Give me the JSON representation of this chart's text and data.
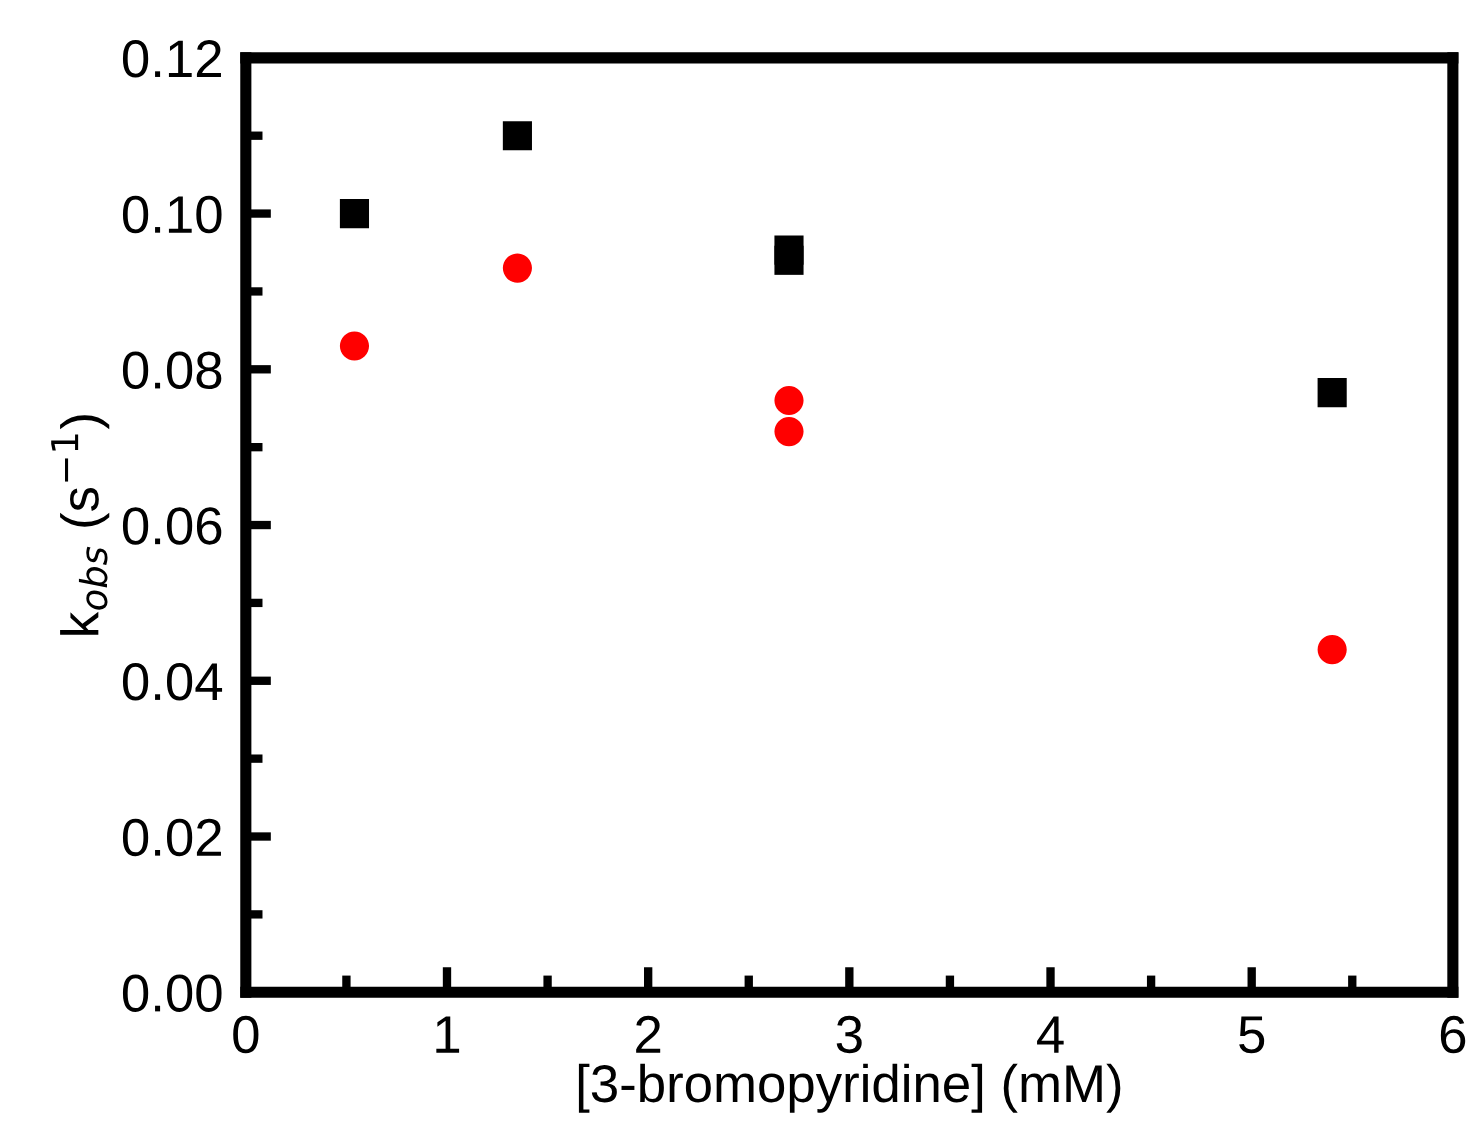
{
  "chart_data": {
    "type": "scatter",
    "xlabel": "[3-bromopyridine] (mM)",
    "ylabel": "k$_{obs}$ (s$^{−1}$)",
    "series": [
      {
        "color": "#000000",
        "marker": "square",
        "x": [
          0.54,
          1.35,
          2.7,
          2.7,
          5.4
        ],
        "values": [
          0.1,
          0.11,
          0.0953,
          0.094,
          0.077
        ]
      },
      {
        "color": "#ff0000",
        "marker": "circle",
        "x": [
          0.54,
          1.35,
          2.7,
          2.7,
          5.4
        ],
        "values": [
          0.083,
          0.093,
          0.076,
          0.072,
          0.044
        ]
      }
    ],
    "xlim": [
      0,
      6
    ],
    "xticks": [
      0,
      1,
      2,
      3,
      4,
      5,
      6
    ],
    "ylim": [
      0,
      0.12
    ],
    "yticks": [
      {
        "value": 0,
        "label": "0.00"
      },
      {
        "value": 0.02,
        "label": "0.02"
      },
      {
        "value": 0.04,
        "label": "0.04"
      },
      {
        "value": 0.06,
        "label": "0.06"
      },
      {
        "value": 0.08,
        "label": "0.08"
      },
      {
        "value": 0.1,
        "label": "0.10"
      },
      {
        "value": 0.12,
        "label": "0.12"
      }
    ],
    "grid": false,
    "legend": false
  }
}
